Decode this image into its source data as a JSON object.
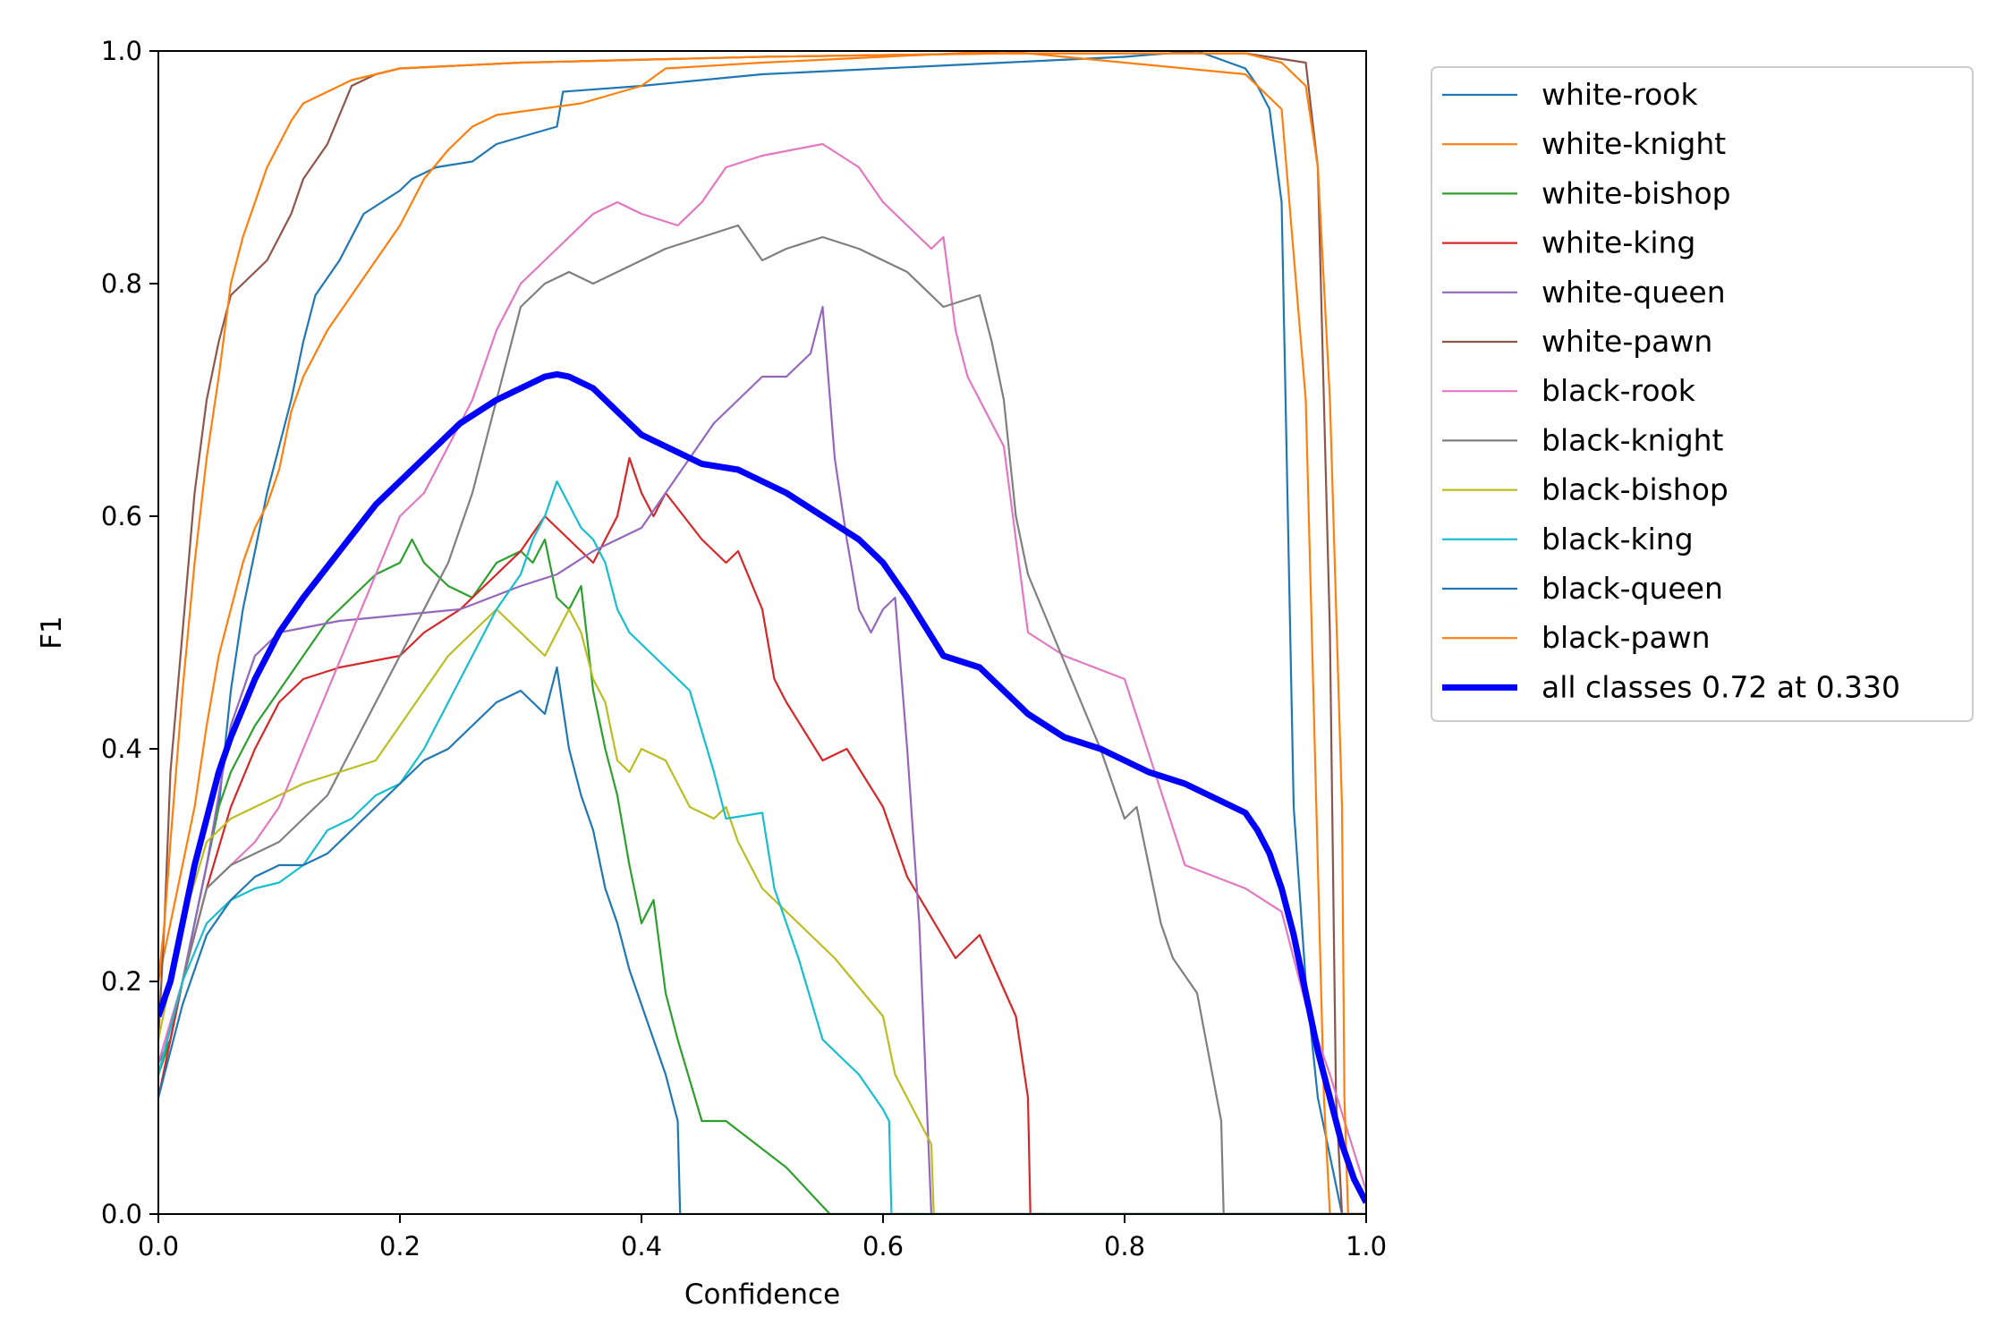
{
  "chart_data": {
    "type": "line",
    "title": "",
    "xlabel": "Confidence",
    "ylabel": "F1",
    "xlim": [
      0,
      1
    ],
    "ylim": [
      0,
      1
    ],
    "xticks": [
      "0.0",
      "0.2",
      "0.4",
      "0.6",
      "0.8",
      "1.0"
    ],
    "yticks": [
      "0.0",
      "0.2",
      "0.4",
      "0.6",
      "0.8",
      "1.0"
    ],
    "grid": false,
    "legend_position": "outside-top-right",
    "series": [
      {
        "name": "white-rook",
        "color": "#1f77b4",
        "bold": false,
        "x": [
          0,
          0.01,
          0.02,
          0.03,
          0.04,
          0.05,
          0.06,
          0.07,
          0.08,
          0.09,
          0.1,
          0.11,
          0.12,
          0.13,
          0.15,
          0.17,
          0.2,
          0.21,
          0.23,
          0.26,
          0.28,
          0.33,
          0.335,
          0.4,
          0.5,
          0.6,
          0.7,
          0.8,
          0.86,
          0.9,
          0.91,
          0.92,
          0.93,
          0.94,
          0.95,
          0.96,
          0.97,
          0.98,
          1
        ],
        "y": [
          0.13,
          0.15,
          0.2,
          0.25,
          0.3,
          0.35,
          0.45,
          0.52,
          0.57,
          0.62,
          0.66,
          0.7,
          0.75,
          0.79,
          0.82,
          0.86,
          0.88,
          0.89,
          0.9,
          0.905,
          0.92,
          0.935,
          0.965,
          0.97,
          0.98,
          0.985,
          0.99,
          0.995,
          1.0,
          0.985,
          0.97,
          0.95,
          0.87,
          0.35,
          0.2,
          0.1,
          0.05,
          0.0,
          0.0
        ]
      },
      {
        "name": "white-knight",
        "color": "#ff7f0e",
        "bold": false,
        "x": [
          0,
          0.01,
          0.02,
          0.03,
          0.04,
          0.05,
          0.06,
          0.07,
          0.08,
          0.09,
          0.1,
          0.11,
          0.12,
          0.14,
          0.16,
          0.18,
          0.2,
          0.22,
          0.24,
          0.26,
          0.28,
          0.35,
          0.4,
          0.42,
          0.5,
          0.6,
          0.7,
          0.8,
          0.9,
          0.93,
          0.95,
          0.96,
          0.965,
          0.97,
          0.98,
          1
        ],
        "y": [
          0.2,
          0.25,
          0.3,
          0.35,
          0.42,
          0.48,
          0.52,
          0.56,
          0.59,
          0.61,
          0.64,
          0.69,
          0.72,
          0.76,
          0.79,
          0.82,
          0.85,
          0.89,
          0.915,
          0.935,
          0.945,
          0.955,
          0.97,
          0.985,
          0.99,
          0.995,
          1.0,
          0.99,
          0.98,
          0.95,
          0.7,
          0.3,
          0.1,
          0.0,
          0.0,
          0.0
        ]
      },
      {
        "name": "white-bishop",
        "color": "#2ca02c",
        "bold": false,
        "x": [
          0,
          0.01,
          0.02,
          0.03,
          0.04,
          0.05,
          0.06,
          0.08,
          0.1,
          0.12,
          0.14,
          0.16,
          0.18,
          0.2,
          0.21,
          0.22,
          0.24,
          0.26,
          0.28,
          0.3,
          0.31,
          0.32,
          0.33,
          0.34,
          0.35,
          0.36,
          0.37,
          0.38,
          0.39,
          0.4,
          0.41,
          0.42,
          0.43,
          0.45,
          0.47,
          0.52,
          0.556,
          1
        ],
        "y": [
          0.12,
          0.15,
          0.2,
          0.25,
          0.3,
          0.35,
          0.38,
          0.42,
          0.45,
          0.48,
          0.51,
          0.53,
          0.55,
          0.56,
          0.58,
          0.56,
          0.54,
          0.53,
          0.56,
          0.57,
          0.56,
          0.58,
          0.53,
          0.52,
          0.54,
          0.45,
          0.4,
          0.36,
          0.3,
          0.25,
          0.27,
          0.19,
          0.15,
          0.08,
          0.08,
          0.04,
          0.0,
          0.0
        ]
      },
      {
        "name": "white-king",
        "color": "#d62728",
        "bold": false,
        "x": [
          0,
          0.01,
          0.02,
          0.04,
          0.06,
          0.08,
          0.1,
          0.12,
          0.15,
          0.2,
          0.22,
          0.25,
          0.28,
          0.3,
          0.32,
          0.34,
          0.36,
          0.38,
          0.39,
          0.4,
          0.41,
          0.42,
          0.45,
          0.47,
          0.48,
          0.5,
          0.51,
          0.52,
          0.55,
          0.57,
          0.6,
          0.62,
          0.66,
          0.68,
          0.71,
          0.72,
          0.722,
          1
        ],
        "y": [
          0.1,
          0.15,
          0.2,
          0.28,
          0.35,
          0.4,
          0.44,
          0.46,
          0.47,
          0.48,
          0.5,
          0.52,
          0.55,
          0.57,
          0.6,
          0.58,
          0.56,
          0.6,
          0.65,
          0.62,
          0.6,
          0.62,
          0.58,
          0.56,
          0.57,
          0.52,
          0.46,
          0.44,
          0.39,
          0.4,
          0.35,
          0.29,
          0.22,
          0.24,
          0.17,
          0.1,
          0.0,
          0.0
        ]
      },
      {
        "name": "white-queen",
        "color": "#9467bd",
        "bold": false,
        "x": [
          0,
          0.02,
          0.04,
          0.06,
          0.08,
          0.1,
          0.15,
          0.2,
          0.25,
          0.3,
          0.33,
          0.36,
          0.38,
          0.4,
          0.42,
          0.44,
          0.46,
          0.48,
          0.5,
          0.52,
          0.54,
          0.55,
          0.56,
          0.57,
          0.58,
          0.59,
          0.6,
          0.61,
          0.62,
          0.63,
          0.64,
          1
        ],
        "y": [
          0.12,
          0.2,
          0.3,
          0.42,
          0.48,
          0.5,
          0.51,
          0.515,
          0.52,
          0.54,
          0.55,
          0.57,
          0.58,
          0.59,
          0.62,
          0.65,
          0.68,
          0.7,
          0.72,
          0.72,
          0.74,
          0.78,
          0.65,
          0.58,
          0.52,
          0.5,
          0.52,
          0.53,
          0.4,
          0.25,
          0.0,
          0.0
        ]
      },
      {
        "name": "white-pawn",
        "color": "#8c564b",
        "bold": false,
        "x": [
          0,
          0.005,
          0.01,
          0.02,
          0.03,
          0.04,
          0.05,
          0.06,
          0.07,
          0.08,
          0.09,
          0.1,
          0.11,
          0.12,
          0.14,
          0.16,
          0.18,
          0.2,
          0.3,
          0.5,
          0.7,
          0.9,
          0.95,
          0.96,
          0.97,
          0.975,
          0.98,
          1
        ],
        "y": [
          0.15,
          0.25,
          0.38,
          0.5,
          0.62,
          0.7,
          0.75,
          0.79,
          0.8,
          0.81,
          0.82,
          0.84,
          0.86,
          0.89,
          0.92,
          0.97,
          0.98,
          0.985,
          0.99,
          0.995,
          0.998,
          0.998,
          0.99,
          0.9,
          0.5,
          0.1,
          0.0,
          0.0
        ]
      },
      {
        "name": "black-rook",
        "color": "#e377c2",
        "bold": false,
        "x": [
          0,
          0.02,
          0.04,
          0.06,
          0.08,
          0.1,
          0.12,
          0.14,
          0.16,
          0.18,
          0.2,
          0.22,
          0.24,
          0.26,
          0.28,
          0.3,
          0.32,
          0.34,
          0.36,
          0.38,
          0.4,
          0.43,
          0.45,
          0.47,
          0.5,
          0.55,
          0.58,
          0.6,
          0.62,
          0.64,
          0.65,
          0.66,
          0.67,
          0.7,
          0.72,
          0.75,
          0.8,
          0.85,
          0.9,
          0.93,
          0.95,
          0.97,
          1
        ],
        "y": [
          0.13,
          0.2,
          0.28,
          0.3,
          0.32,
          0.35,
          0.4,
          0.45,
          0.5,
          0.55,
          0.6,
          0.62,
          0.66,
          0.7,
          0.76,
          0.8,
          0.82,
          0.84,
          0.86,
          0.87,
          0.86,
          0.85,
          0.87,
          0.9,
          0.91,
          0.92,
          0.9,
          0.87,
          0.85,
          0.83,
          0.84,
          0.76,
          0.72,
          0.66,
          0.5,
          0.48,
          0.46,
          0.3,
          0.28,
          0.26,
          0.18,
          0.12,
          0.02
        ]
      },
      {
        "name": "black-knight",
        "color": "#7f7f7f",
        "bold": false,
        "x": [
          0,
          0.02,
          0.04,
          0.06,
          0.08,
          0.1,
          0.12,
          0.14,
          0.16,
          0.18,
          0.2,
          0.22,
          0.24,
          0.26,
          0.28,
          0.3,
          0.32,
          0.34,
          0.36,
          0.38,
          0.4,
          0.42,
          0.45,
          0.48,
          0.5,
          0.52,
          0.55,
          0.58,
          0.6,
          0.62,
          0.65,
          0.68,
          0.69,
          0.7,
          0.71,
          0.72,
          0.74,
          0.76,
          0.78,
          0.8,
          0.81,
          0.82,
          0.83,
          0.84,
          0.86,
          0.88,
          0.882,
          1
        ],
        "y": [
          0.12,
          0.2,
          0.28,
          0.3,
          0.31,
          0.32,
          0.34,
          0.36,
          0.4,
          0.44,
          0.48,
          0.52,
          0.56,
          0.62,
          0.7,
          0.78,
          0.8,
          0.81,
          0.8,
          0.81,
          0.82,
          0.83,
          0.84,
          0.85,
          0.82,
          0.83,
          0.84,
          0.83,
          0.82,
          0.81,
          0.78,
          0.79,
          0.75,
          0.7,
          0.6,
          0.55,
          0.5,
          0.45,
          0.4,
          0.34,
          0.35,
          0.3,
          0.25,
          0.22,
          0.19,
          0.08,
          0.0,
          0.0
        ]
      },
      {
        "name": "black-bishop",
        "color": "#bcbd22",
        "bold": false,
        "x": [
          0,
          0.02,
          0.04,
          0.06,
          0.08,
          0.1,
          0.12,
          0.15,
          0.18,
          0.2,
          0.22,
          0.24,
          0.26,
          0.28,
          0.3,
          0.32,
          0.34,
          0.35,
          0.36,
          0.37,
          0.38,
          0.39,
          0.4,
          0.42,
          0.44,
          0.46,
          0.47,
          0.48,
          0.5,
          0.56,
          0.6,
          0.61,
          0.64,
          0.642,
          1
        ],
        "y": [
          0.15,
          0.25,
          0.32,
          0.34,
          0.35,
          0.36,
          0.37,
          0.38,
          0.39,
          0.42,
          0.45,
          0.48,
          0.5,
          0.52,
          0.5,
          0.48,
          0.52,
          0.5,
          0.46,
          0.44,
          0.39,
          0.38,
          0.4,
          0.39,
          0.35,
          0.34,
          0.35,
          0.32,
          0.28,
          0.22,
          0.17,
          0.12,
          0.06,
          0.0,
          0.0
        ]
      },
      {
        "name": "black-king",
        "color": "#17becf",
        "bold": false,
        "x": [
          0,
          0.02,
          0.04,
          0.06,
          0.08,
          0.1,
          0.12,
          0.14,
          0.16,
          0.18,
          0.2,
          0.22,
          0.24,
          0.26,
          0.28,
          0.3,
          0.31,
          0.32,
          0.33,
          0.34,
          0.35,
          0.36,
          0.37,
          0.38,
          0.39,
          0.4,
          0.42,
          0.44,
          0.46,
          0.47,
          0.5,
          0.51,
          0.53,
          0.55,
          0.58,
          0.6,
          0.605,
          0.607,
          1
        ],
        "y": [
          0.12,
          0.2,
          0.25,
          0.27,
          0.28,
          0.285,
          0.3,
          0.33,
          0.34,
          0.36,
          0.37,
          0.4,
          0.44,
          0.48,
          0.52,
          0.55,
          0.58,
          0.6,
          0.63,
          0.61,
          0.59,
          0.58,
          0.56,
          0.52,
          0.5,
          0.49,
          0.47,
          0.45,
          0.38,
          0.34,
          0.345,
          0.28,
          0.22,
          0.15,
          0.12,
          0.09,
          0.08,
          0.0,
          0.0
        ]
      },
      {
        "name": "black-queen",
        "color": "#1f77b4",
        "bold": false,
        "x": [
          0,
          0.02,
          0.04,
          0.06,
          0.08,
          0.1,
          0.12,
          0.14,
          0.16,
          0.18,
          0.2,
          0.22,
          0.24,
          0.26,
          0.28,
          0.3,
          0.31,
          0.32,
          0.33,
          0.34,
          0.35,
          0.36,
          0.37,
          0.38,
          0.39,
          0.4,
          0.41,
          0.42,
          0.43,
          0.432,
          1
        ],
        "y": [
          0.1,
          0.18,
          0.24,
          0.27,
          0.29,
          0.3,
          0.3,
          0.31,
          0.33,
          0.35,
          0.37,
          0.39,
          0.4,
          0.42,
          0.44,
          0.45,
          0.44,
          0.43,
          0.47,
          0.4,
          0.36,
          0.33,
          0.28,
          0.25,
          0.21,
          0.18,
          0.15,
          0.12,
          0.08,
          0.0,
          0.0
        ]
      },
      {
        "name": "black-pawn",
        "color": "#ff7f0e",
        "bold": false,
        "x": [
          0,
          0.005,
          0.01,
          0.02,
          0.03,
          0.04,
          0.05,
          0.06,
          0.07,
          0.08,
          0.09,
          0.1,
          0.11,
          0.12,
          0.14,
          0.16,
          0.18,
          0.2,
          0.3,
          0.5,
          0.7,
          0.9,
          0.93,
          0.95,
          0.96,
          0.97,
          0.98,
          0.982,
          0.985,
          1
        ],
        "y": [
          0.2,
          0.25,
          0.32,
          0.45,
          0.56,
          0.65,
          0.72,
          0.8,
          0.84,
          0.87,
          0.9,
          0.92,
          0.94,
          0.955,
          0.965,
          0.975,
          0.98,
          0.985,
          0.99,
          0.995,
          0.998,
          0.998,
          0.99,
          0.97,
          0.9,
          0.7,
          0.35,
          0.1,
          0.0,
          0.0
        ]
      },
      {
        "name": "all classes 0.72 at 0.330",
        "color": "#0000ff",
        "bold": true,
        "x": [
          0,
          0.01,
          0.02,
          0.03,
          0.04,
          0.05,
          0.06,
          0.08,
          0.1,
          0.12,
          0.15,
          0.18,
          0.2,
          0.23,
          0.25,
          0.28,
          0.3,
          0.32,
          0.33,
          0.34,
          0.36,
          0.38,
          0.4,
          0.42,
          0.45,
          0.48,
          0.5,
          0.52,
          0.55,
          0.58,
          0.6,
          0.62,
          0.65,
          0.68,
          0.7,
          0.72,
          0.75,
          0.78,
          0.8,
          0.82,
          0.85,
          0.88,
          0.9,
          0.91,
          0.92,
          0.93,
          0.94,
          0.95,
          0.96,
          0.97,
          0.98,
          0.99,
          1
        ],
        "y": [
          0.17,
          0.2,
          0.25,
          0.3,
          0.34,
          0.38,
          0.41,
          0.46,
          0.5,
          0.53,
          0.57,
          0.61,
          0.63,
          0.66,
          0.68,
          0.7,
          0.71,
          0.72,
          0.722,
          0.72,
          0.71,
          0.69,
          0.67,
          0.66,
          0.645,
          0.64,
          0.63,
          0.62,
          0.6,
          0.58,
          0.56,
          0.53,
          0.48,
          0.47,
          0.45,
          0.43,
          0.41,
          0.4,
          0.39,
          0.38,
          0.37,
          0.355,
          0.345,
          0.33,
          0.31,
          0.28,
          0.24,
          0.19,
          0.14,
          0.1,
          0.06,
          0.03,
          0.01
        ]
      }
    ]
  }
}
